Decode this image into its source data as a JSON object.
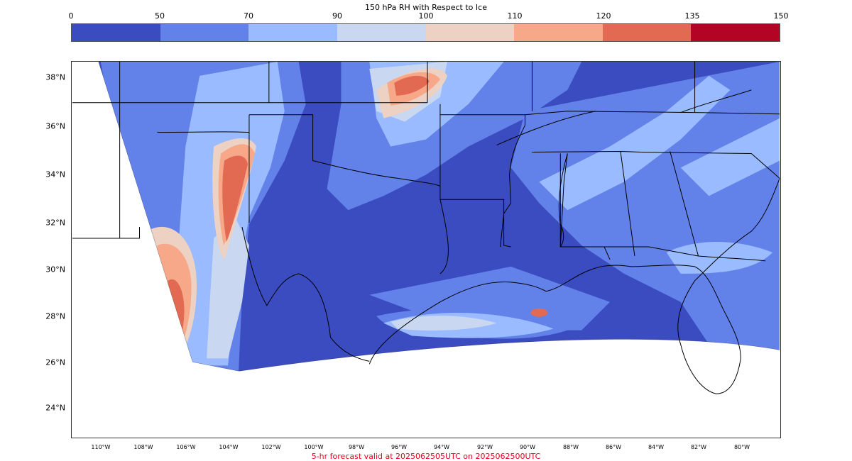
{
  "colorbar": {
    "title": "150 hPa RH with Respect to Ice",
    "ticks": [
      "0",
      "50",
      "70",
      "90",
      "100",
      "110",
      "120",
      "135",
      "150"
    ],
    "colors": [
      "#3b4cc0",
      "#6282ea",
      "#9abbff",
      "#c9d7f0",
      "#edd1c2",
      "#f7a889",
      "#e26952",
      "#b40426"
    ]
  },
  "map": {
    "lat_labels": [
      "38°N",
      "36°N",
      "34°N",
      "32°N",
      "30°N",
      "28°N",
      "26°N",
      "24°N"
    ],
    "lon_labels": [
      "110°W",
      "108°W",
      "106°W",
      "104°W",
      "102°W",
      "100°W",
      "98°W",
      "96°W",
      "94°W",
      "92°W",
      "90°W",
      "88°W",
      "86°W",
      "84°W",
      "82°W",
      "80°W"
    ],
    "field_colors": {
      "background": "#ffffff",
      "boundary_line": "#000000"
    }
  },
  "caption": "5-hr forecast valid at 2025062505UTC on 2025062500UTC"
}
